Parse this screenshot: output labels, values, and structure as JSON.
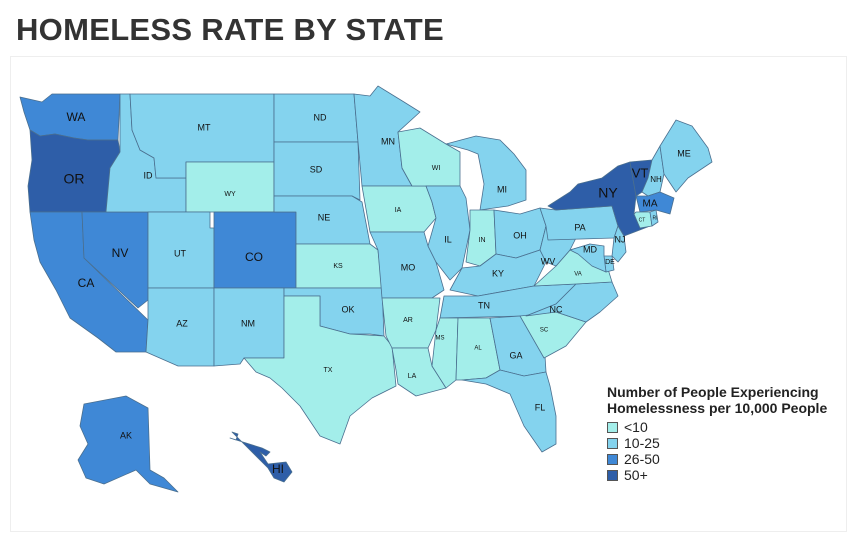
{
  "title": "HOMELESS RATE BY STATE",
  "legend": {
    "title_line1": "Number of People Experiencing",
    "title_line2": "Homelessness per 10,000 People",
    "bins": [
      {
        "label": "<10",
        "color": "#a3eeea"
      },
      {
        "label": "10-25",
        "color": "#84d3ee"
      },
      {
        "label": "26-50",
        "color": "#3f88d6"
      },
      {
        "label": "50+",
        "color": "#2e5ea8"
      }
    ]
  },
  "states": [
    {
      "code": "WA",
      "bin": 2
    },
    {
      "code": "OR",
      "bin": 3
    },
    {
      "code": "CA",
      "bin": 2
    },
    {
      "code": "NV",
      "bin": 2
    },
    {
      "code": "ID",
      "bin": 1
    },
    {
      "code": "MT",
      "bin": 1
    },
    {
      "code": "WY",
      "bin": 0
    },
    {
      "code": "UT",
      "bin": 1
    },
    {
      "code": "CO",
      "bin": 2
    },
    {
      "code": "AZ",
      "bin": 1
    },
    {
      "code": "NM",
      "bin": 1
    },
    {
      "code": "ND",
      "bin": 1
    },
    {
      "code": "SD",
      "bin": 1
    },
    {
      "code": "NE",
      "bin": 1
    },
    {
      "code": "KS",
      "bin": 0
    },
    {
      "code": "OK",
      "bin": 1
    },
    {
      "code": "TX",
      "bin": 0
    },
    {
      "code": "MN",
      "bin": 1
    },
    {
      "code": "IA",
      "bin": 0
    },
    {
      "code": "MO",
      "bin": 1
    },
    {
      "code": "AR",
      "bin": 0
    },
    {
      "code": "LA",
      "bin": 0
    },
    {
      "code": "WI",
      "bin": 0
    },
    {
      "code": "IL",
      "bin": 1
    },
    {
      "code": "MI",
      "bin": 1
    },
    {
      "code": "IN",
      "bin": 0
    },
    {
      "code": "OH",
      "bin": 1
    },
    {
      "code": "KY",
      "bin": 1
    },
    {
      "code": "TN",
      "bin": 1
    },
    {
      "code": "MS",
      "bin": 0
    },
    {
      "code": "AL",
      "bin": 0
    },
    {
      "code": "GA",
      "bin": 1
    },
    {
      "code": "FL",
      "bin": 1
    },
    {
      "code": "SC",
      "bin": 0
    },
    {
      "code": "NC",
      "bin": 1
    },
    {
      "code": "VA",
      "bin": 0
    },
    {
      "code": "WV",
      "bin": 1
    },
    {
      "code": "PA",
      "bin": 1
    },
    {
      "code": "NY",
      "bin": 3
    },
    {
      "code": "VT",
      "bin": 3
    },
    {
      "code": "NH",
      "bin": 1
    },
    {
      "code": "ME",
      "bin": 1
    },
    {
      "code": "MA",
      "bin": 2
    },
    {
      "code": "CT",
      "bin": 0
    },
    {
      "code": "RI",
      "bin": 1
    },
    {
      "code": "NJ",
      "bin": 1
    },
    {
      "code": "DE",
      "bin": 1
    },
    {
      "code": "MD",
      "bin": 1
    },
    {
      "code": "AK",
      "bin": 2
    },
    {
      "code": "HI",
      "bin": 3
    }
  ]
}
